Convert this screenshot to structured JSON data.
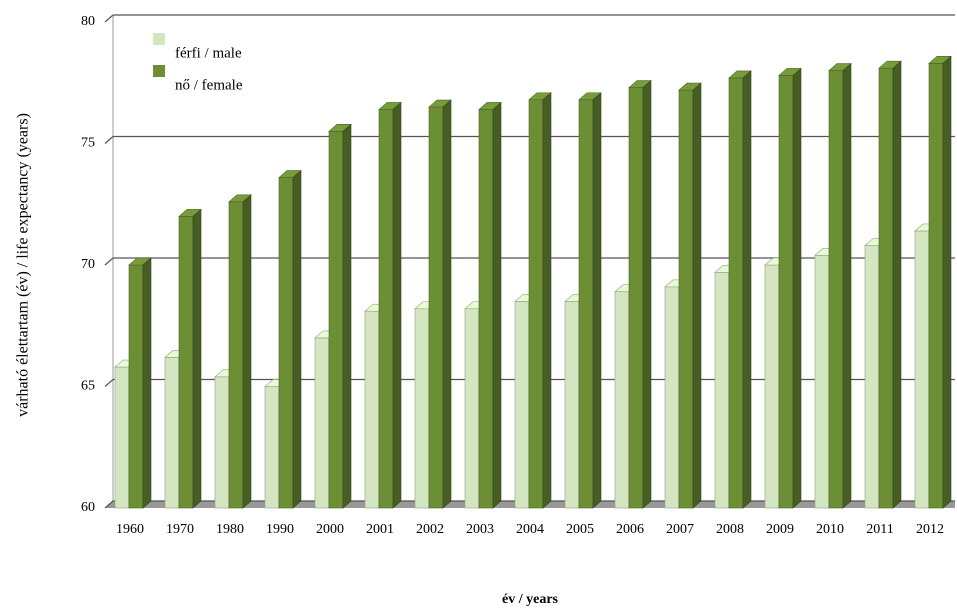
{
  "chart_data": {
    "type": "bar3d",
    "ylabel": "várható élettartam (év) / life expectancy (years)",
    "xlabel": "év / years",
    "categories": [
      "1960",
      "1970",
      "1980",
      "1990",
      "2000",
      "2001",
      "2002",
      "2003",
      "2004",
      "2005",
      "2006",
      "2007",
      "2008",
      "2009",
      "2010",
      "2011",
      "2012"
    ],
    "series": [
      {
        "name": "férfi / male",
        "color": "#d3e5c1",
        "values": [
          65.8,
          66.2,
          65.4,
          65.0,
          67.0,
          68.1,
          68.2,
          68.2,
          68.5,
          68.5,
          68.9,
          69.1,
          69.7,
          70.0,
          70.4,
          70.8,
          71.4
        ]
      },
      {
        "name": "nő / female",
        "color": "#6c8f36",
        "values": [
          70.0,
          72.0,
          72.6,
          73.6,
          75.5,
          76.4,
          76.5,
          76.4,
          76.8,
          76.8,
          77.3,
          77.2,
          77.7,
          77.8,
          78.0,
          78.1,
          78.3
        ]
      }
    ],
    "ylim": [
      60,
      80
    ],
    "yticks": [
      60,
      65,
      70,
      75,
      80
    ],
    "grid": true,
    "legend": "top-left"
  }
}
